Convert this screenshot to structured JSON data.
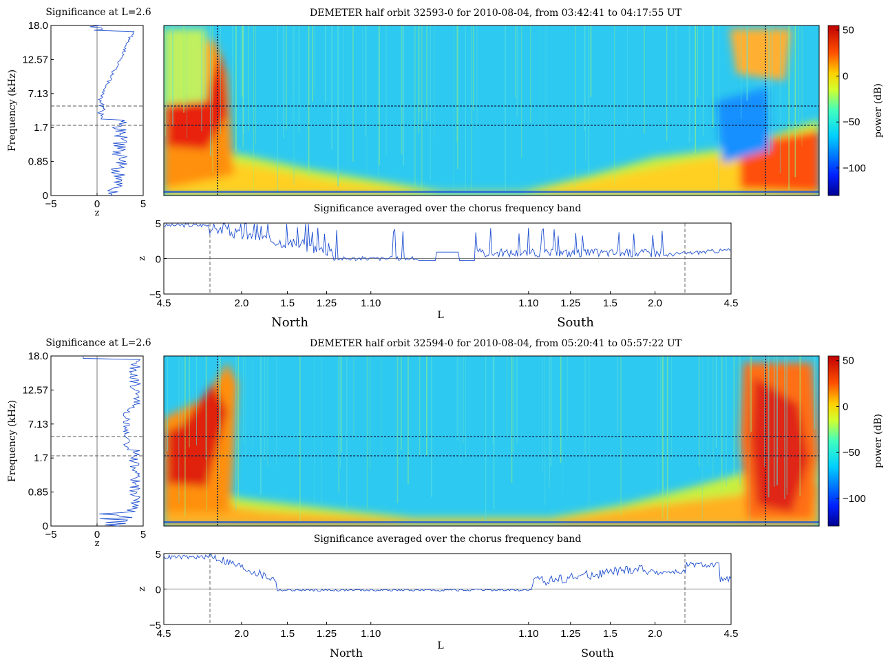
{
  "chart_data": [
    {
      "type": "heatmap",
      "title": "DEMETER half orbit 32593-0 for 2010-08-04, from 03:42:41 to 04:17:55 UT",
      "left_panel": {
        "title": "Significance at L=2.6",
        "ylabel": "Frequency (kHz)",
        "xlabel": "z",
        "y_ticks": [
          "0",
          "0.85",
          "1.7",
          "7.13",
          "12.57",
          "18.0"
        ],
        "x_ticks": [
          "−5",
          "0",
          "5"
        ],
        "xlim": [
          -5,
          5
        ],
        "dashed_lines": [
          "~1.7 kHz",
          "~3.5 kHz"
        ]
      },
      "colorbar": {
        "label": "power (dB)",
        "ticks": [
          "50",
          "0",
          "−50",
          "−100"
        ],
        "range": [
          -130,
          55
        ]
      },
      "bottom_panel": {
        "title": "Significance averaged over the chorus frequency band",
        "ylabel": "z",
        "y_ticks": [
          "5",
          "0",
          "−5"
        ],
        "ylim": [
          -5,
          5
        ],
        "xlabel": "L",
        "x_ticks": [
          "4.5",
          "2.0",
          "1.5",
          "1.25",
          "1.10",
          "1.10",
          "1.25",
          "1.5",
          "2.0",
          "4.5"
        ],
        "hemispheres": [
          "North",
          "South"
        ],
        "marker_L": "2.6"
      }
    },
    {
      "type": "heatmap",
      "title": "DEMETER half orbit 32594-0 for 2010-08-04, from 05:20:41 to 05:57:22 UT",
      "left_panel": {
        "title": "Significance at L=2.6",
        "ylabel": "Frequency (kHz)",
        "xlabel": "z",
        "y_ticks": [
          "0",
          "0.85",
          "1.7",
          "7.13",
          "12.57",
          "18.0"
        ],
        "x_ticks": [
          "−5",
          "0",
          "5"
        ],
        "xlim": [
          -5,
          5
        ],
        "dashed_lines": [
          "~1.7 kHz",
          "~3.5 kHz"
        ]
      },
      "colorbar": {
        "label": "power (dB)",
        "ticks": [
          "50",
          "0",
          "−50",
          "−100"
        ],
        "range": [
          -130,
          55
        ]
      },
      "bottom_panel": {
        "title": "Significance averaged over the chorus frequency band",
        "ylabel": "z",
        "y_ticks": [
          "5",
          "0",
          "−5"
        ],
        "ylim": [
          -5,
          5
        ],
        "xlabel": "L",
        "x_ticks": [
          "4.5",
          "2.0",
          "1.5",
          "1.25",
          "1.10",
          "1.10",
          "1.25",
          "1.5",
          "2.0",
          "4.5"
        ],
        "hemispheres": [
          "North",
          "South"
        ],
        "marker_L": "2.6"
      }
    }
  ]
}
